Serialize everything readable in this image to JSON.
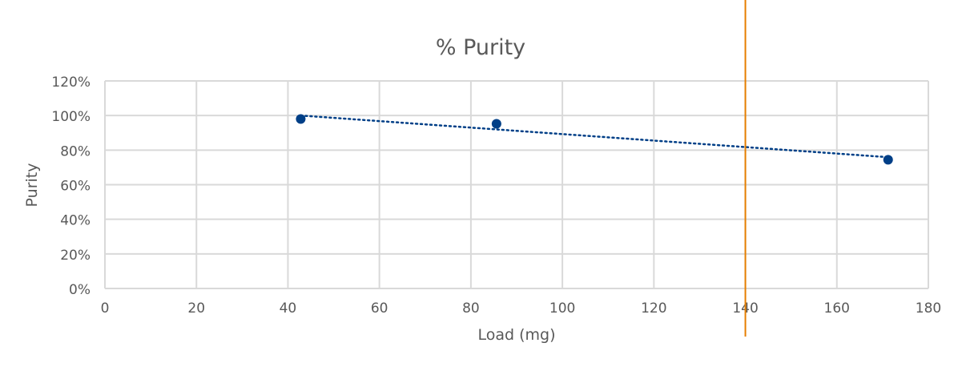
{
  "chart_data": {
    "type": "scatter",
    "title": "% Purity",
    "xlabel": "Load (mg)",
    "ylabel": "Purity",
    "xlim": [
      0,
      180
    ],
    "ylim": [
      0,
      120
    ],
    "x_ticks": [
      0,
      20,
      40,
      60,
      80,
      100,
      120,
      140,
      160,
      180
    ],
    "y_ticks": [
      0,
      20,
      40,
      60,
      80,
      100,
      120
    ],
    "y_tick_labels": [
      "0%",
      "20%",
      "40%",
      "60%",
      "80%",
      "100%",
      "120%"
    ],
    "grid": true,
    "legend": "none",
    "series": [
      {
        "name": "Purity",
        "x": [
          42.8,
          85.6,
          171.2
        ],
        "y": [
          98,
          95.2,
          74.4
        ],
        "color": "#003f87"
      }
    ],
    "trendline": {
      "type": "linear",
      "x": [
        42.8,
        171.2
      ],
      "y": [
        100,
        75.9
      ],
      "color": "#003f87",
      "style": "dotted"
    },
    "reference_line": {
      "x": 140,
      "color": "#e67e00"
    }
  }
}
